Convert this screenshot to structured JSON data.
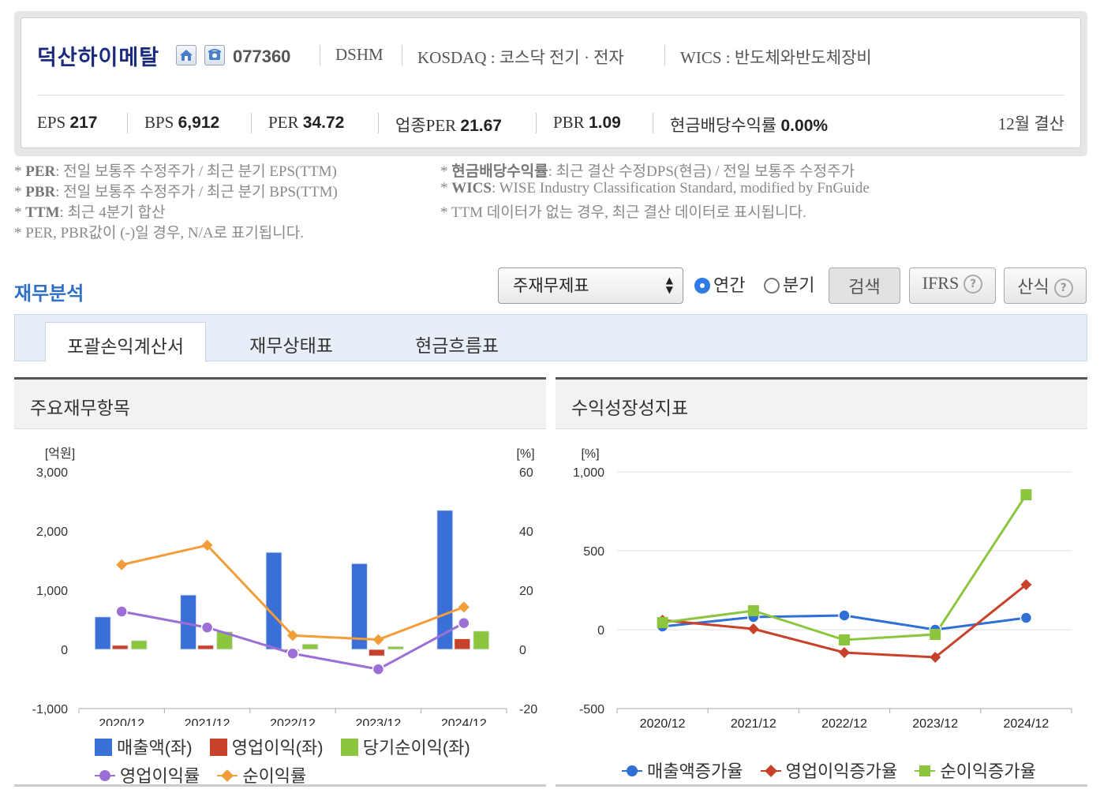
{
  "header": {
    "company_name": "덕산하이메탈",
    "stock_code": "077360",
    "ticker": "DSHM",
    "market": "KOSDAQ : 코스닥 전기 · 전자",
    "wics": "WICS : 반도체와반도체장비",
    "fiscal": "12월 결산",
    "icons": [
      "home-icon",
      "phone-icon"
    ]
  },
  "metrics": [
    {
      "label": "EPS",
      "value": "217"
    },
    {
      "label": "BPS",
      "value": "6,912"
    },
    {
      "label": "PER",
      "value": "34.72"
    },
    {
      "label": "업종PER",
      "value": "21.67"
    },
    {
      "label": "PBR",
      "value": "1.09"
    },
    {
      "label": "현금배당수익률",
      "value": "0.00%"
    }
  ],
  "notes": {
    "n1_key": "PER",
    "n1_text": ": 전일 보통주 수정주가 / 최근 분기 EPS(TTM)",
    "n2_key": "PBR",
    "n2_text": ": 전일 보통주 수정주가 / 최근 분기 BPS(TTM)",
    "n3_key": "TTM",
    "n3_text": ": 최근 4분기 합산",
    "n4_text": "* PER, PBR값이 (-)일 경우, N/A로 표기됩니다.",
    "n5_key": "현금배당수익률",
    "n5_text": ": 최근 결산 수정DPS(현금) / 전일 보통주 수정주가",
    "n6_key": "WICS",
    "n6_text": ": WISE Industry Classification Standard, modified by FnGuide",
    "n7_text": "* TTM 데이터가 없는 경우, 최근 결산 데이터로 표시됩니다."
  },
  "section": {
    "title": "재무분석",
    "select_value": "주재무제표",
    "radio_annual": "연간",
    "radio_quarter": "분기",
    "search_button": "검색",
    "ifrs_button": "IFRS",
    "formula_button": "산식"
  },
  "tabs": [
    "포괄손익계산서",
    "재무상태표",
    "현금흐름표"
  ],
  "colors": {
    "revenue": "#3b6fd8",
    "operating_income": "#c8412a",
    "net_income": "#8cc63f",
    "op_margin": "#9b6fd6",
    "net_margin": "#f39c3a",
    "rev_growth": "#2f6fd6",
    "op_growth": "#c8412a",
    "net_growth": "#8cc63f"
  },
  "chart_data": [
    {
      "type": "bar",
      "title": "주요재무항목",
      "categories": [
        "2020/12",
        "2021/12",
        "2022/12",
        "2023/12",
        "2024/12"
      ],
      "y_left_unit": "[억원]",
      "y_right_unit": "[%]",
      "ylim_left": [
        -1000,
        3000
      ],
      "ylim_right": [
        -20,
        60
      ],
      "yticks_left": [
        "3,000",
        "2,000",
        "1,000",
        "0",
        "-1,000"
      ],
      "yticks_right": [
        "60",
        "40",
        "20",
        "0",
        "-20"
      ],
      "series": [
        {
          "name": "매출액(좌)",
          "axis": "left",
          "kind": "bar",
          "values": [
            550,
            920,
            1640,
            1450,
            2350
          ]
        },
        {
          "name": "영업이익(좌)",
          "axis": "left",
          "kind": "bar",
          "values": [
            70,
            70,
            -30,
            -110,
            180
          ]
        },
        {
          "name": "당기순이익(좌)",
          "axis": "left",
          "kind": "bar",
          "values": [
            150,
            300,
            90,
            50,
            310
          ]
        },
        {
          "name": "영업이익률",
          "axis": "right",
          "kind": "line",
          "values": [
            12.8,
            7.4,
            -1.4,
            -6.7,
            8.9
          ]
        },
        {
          "name": "순이익률",
          "axis": "right",
          "kind": "line",
          "values": [
            28.6,
            35.2,
            4.7,
            3.3,
            14.3
          ]
        }
      ],
      "legend": "bottom"
    },
    {
      "type": "line",
      "title": "수익성장성지표",
      "categories": [
        "2020/12",
        "2021/12",
        "2022/12",
        "2023/12",
        "2024/12"
      ],
      "y_unit": "[%]",
      "ylim": [
        -500,
        1000
      ],
      "yticks": [
        "1,000",
        "500",
        "0",
        "-500"
      ],
      "grid": true,
      "series": [
        {
          "name": "매출액증가율",
          "marker": "circle",
          "values": [
            20,
            80,
            90,
            0,
            75
          ]
        },
        {
          "name": "영업이익증가율",
          "marker": "diamond",
          "values": [
            60,
            5,
            -145,
            -175,
            285
          ]
        },
        {
          "name": "순이익증가율",
          "marker": "square",
          "values": [
            45,
            120,
            -65,
            -30,
            855
          ]
        }
      ],
      "legend": "bottom"
    }
  ]
}
